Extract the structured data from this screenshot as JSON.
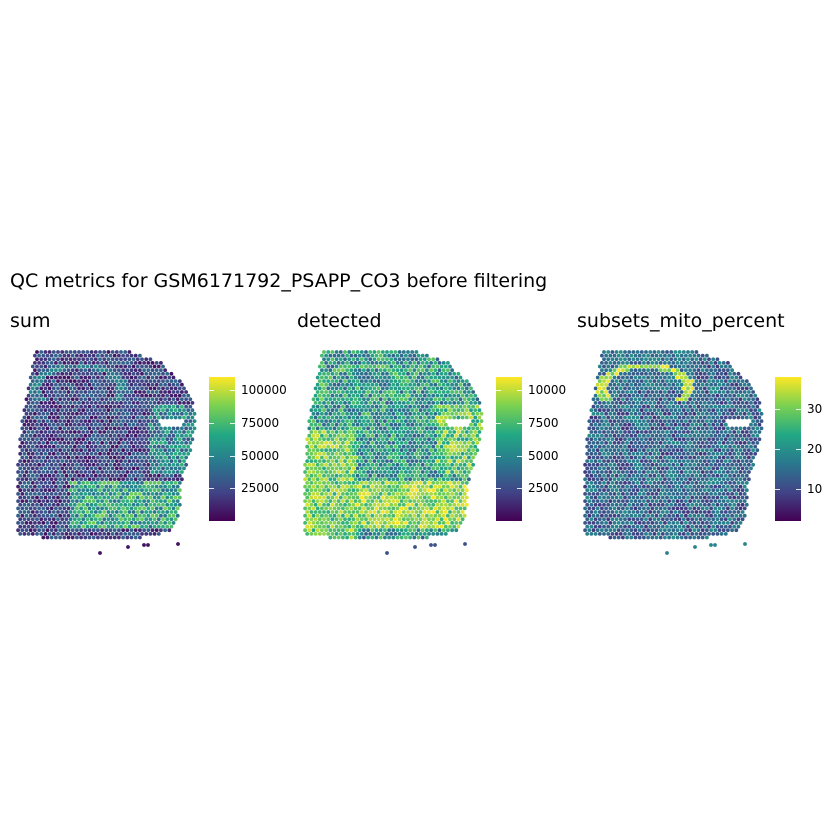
{
  "title": "QC metrics for GSM6171792_PSAPP_CO3 before filtering",
  "palette": [
    "#440154",
    "#414487",
    "#2a788e",
    "#22a884",
    "#7ad151",
    "#fde725"
  ],
  "chart_data": [
    {
      "type": "scatter",
      "title": "sum",
      "colorbar": {
        "min": 0,
        "max": 110000,
        "ticks": [
          25000,
          50000,
          75000,
          100000
        ]
      }
    },
    {
      "type": "scatter",
      "title": "detected",
      "colorbar": {
        "min": 0,
        "max": 11000,
        "ticks": [
          2500,
          5000,
          7500,
          10000
        ]
      }
    },
    {
      "type": "scatter",
      "title": "subsets_mito_percent",
      "colorbar": {
        "min": 2,
        "max": 38,
        "ticks": [
          10,
          20,
          30
        ]
      }
    }
  ]
}
